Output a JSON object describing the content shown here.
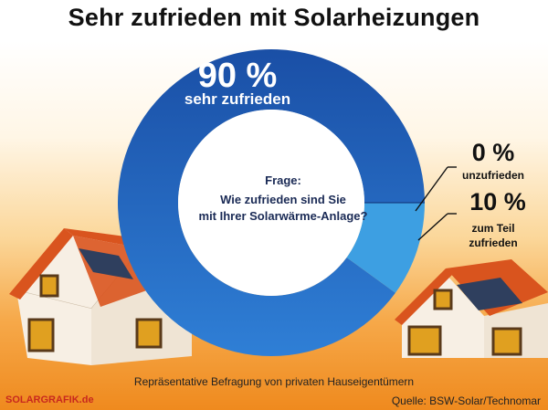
{
  "title": "Sehr zufrieden mit Solarheizungen",
  "question": {
    "label": "Frage:",
    "line1": "Wie zufrieden sind Sie",
    "line2": "mit Ihrer Solarwärme-Anlage?"
  },
  "labels": {
    "main_pct": "90 %",
    "main_text": "sehr zufrieden",
    "zero_pct": "0 %",
    "zero_text": "unzufrieden",
    "ten_pct": "10 %",
    "ten_text_1": "zum Teil",
    "ten_text_2": "zufrieden"
  },
  "footnote": "Repräsentative Befragung von privaten Hauseigentümern",
  "brand": "SOLARGRAFIK.de",
  "source": "Quelle: BSW-Solar/Technomar",
  "colors": {
    "sehr_zufrieden": "#1f5cb8",
    "zum_teil_zufrieden": "#3d9fe2",
    "unzufrieden": "#0d2f73",
    "roof": "#d9541e",
    "wall": "#f7efe4",
    "background_bottom": "#ef8a1e"
  },
  "chart_data": {
    "type": "pie",
    "donut": true,
    "title": "Sehr zufrieden mit Solarheizungen",
    "categories": [
      "sehr zufrieden",
      "zum Teil zufrieden",
      "unzufrieden"
    ],
    "values": [
      90,
      10,
      0
    ],
    "unit": "%"
  }
}
